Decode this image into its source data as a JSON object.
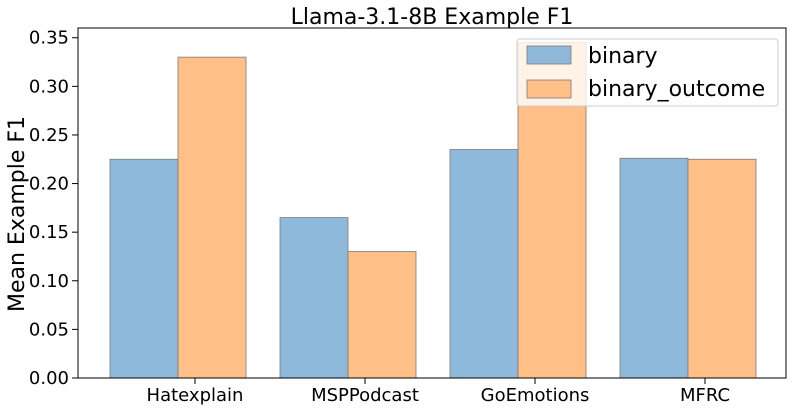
{
  "chart_data": {
    "type": "bar",
    "title": "Llama-3.1-8B Example F1",
    "xlabel": "",
    "ylabel": "Mean Example F1",
    "categories": [
      "Hatexplain",
      "MSPPodcast",
      "GoEmotions",
      "MFRC"
    ],
    "series": [
      {
        "name": "binary",
        "color": "#8fb9da",
        "values": [
          0.225,
          0.165,
          0.235,
          0.226
        ]
      },
      {
        "name": "binary_outcome",
        "color": "#ffbf86",
        "values": [
          0.33,
          0.13,
          0.345,
          0.225
        ]
      }
    ],
    "ylim": [
      0,
      0.36
    ],
    "yticks": [
      "0.00",
      "0.05",
      "0.10",
      "0.15",
      "0.20",
      "0.25",
      "0.30",
      "0.35"
    ],
    "grid": false,
    "legend": "top-right"
  }
}
